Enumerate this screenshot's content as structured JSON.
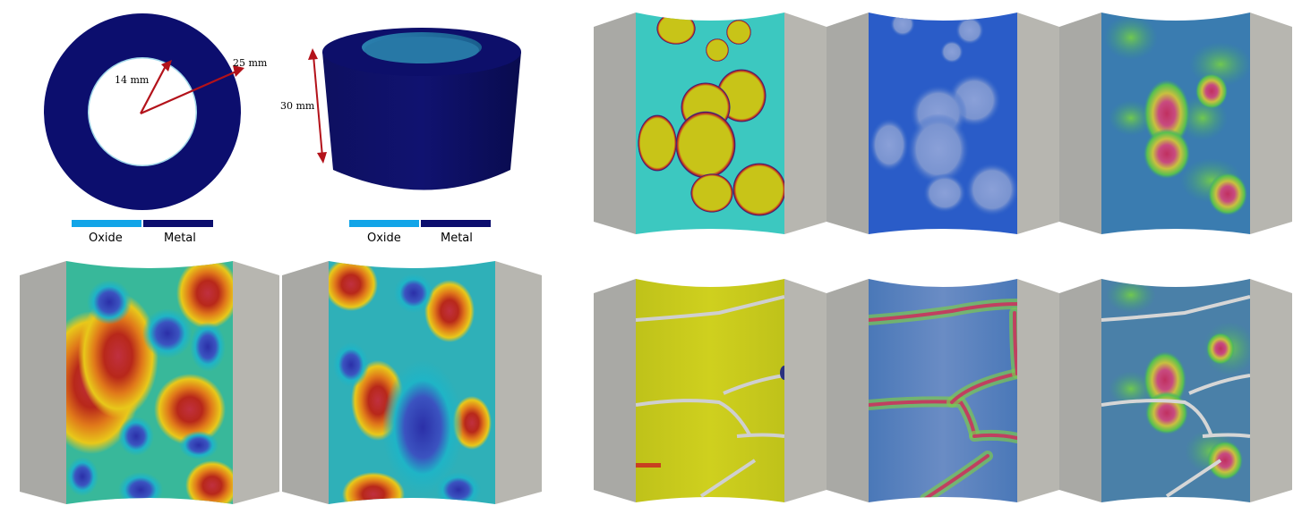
{
  "geometry": {
    "inner_radius_label": "14 mm",
    "outer_radius_label": "25 mm",
    "height_label": "30 mm"
  },
  "legend": {
    "items": [
      {
        "label": "Oxide",
        "color": "#12a5e8"
      },
      {
        "label": "Metal",
        "color": "#0c0e6e"
      }
    ]
  },
  "colors": {
    "metal": "#0c0e6e",
    "oxide": "#12a5e8",
    "arrow": "#b3121a",
    "panel_gray": "#a8a8a4",
    "panel_gray_light": "#b8b8b2"
  },
  "panels": {
    "random_fields": [
      "random-field-1",
      "random-field-2"
    ],
    "top_row": [
      "phase-field-yellow",
      "blue-damage",
      "overlay-damage"
    ],
    "bottom_row": [
      "cracks-yellow",
      "crack-field-blue",
      "overlay-cracks"
    ]
  }
}
